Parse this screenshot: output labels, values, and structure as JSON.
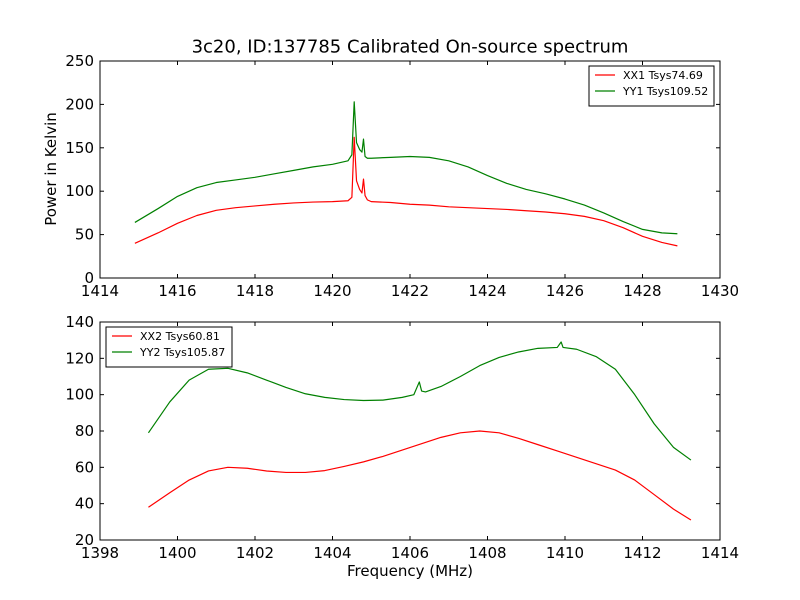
{
  "chart_data": [
    {
      "type": "line",
      "title": "3c20, ID:137785 Calibrated On-source spectrum",
      "xlabel": "",
      "ylabel": "Power in Kelvin",
      "xlim": [
        1414,
        1430
      ],
      "ylim": [
        0,
        250
      ],
      "xticks": [
        "1414",
        "1416",
        "1418",
        "1420",
        "1422",
        "1424",
        "1426",
        "1428",
        "1430"
      ],
      "yticks": [
        "0",
        "50",
        "100",
        "150",
        "200",
        "250"
      ],
      "grid": false,
      "legend_position": "top-right",
      "series": [
        {
          "name": "XX1 Tsys74.69",
          "color": "#ff0000",
          "x": [
            1414.9,
            1415.5,
            1416.0,
            1416.5,
            1417.0,
            1417.5,
            1418.0,
            1418.5,
            1419.0,
            1419.5,
            1420.0,
            1420.4,
            1420.5,
            1420.56,
            1420.62,
            1420.7,
            1420.76,
            1420.8,
            1420.84,
            1420.9,
            1421.0,
            1421.5,
            1422.0,
            1422.5,
            1423.0,
            1423.5,
            1424.0,
            1424.5,
            1425.0,
            1425.5,
            1426.0,
            1426.5,
            1427.0,
            1427.5,
            1428.0,
            1428.5,
            1428.9
          ],
          "y": [
            40,
            52,
            63,
            72,
            78,
            81,
            83,
            85,
            86.5,
            87.5,
            88,
            89,
            93,
            162,
            112,
            102,
            98,
            114,
            95,
            90,
            88,
            87,
            85,
            84,
            82,
            81,
            80,
            79,
            77.5,
            76,
            74,
            71,
            66,
            58,
            48,
            41,
            37
          ]
        },
        {
          "name": "YY1 Tsys109.52",
          "color": "#008000",
          "x": [
            1414.9,
            1415.5,
            1416.0,
            1416.5,
            1417.0,
            1417.5,
            1418.0,
            1418.5,
            1419.0,
            1419.5,
            1420.0,
            1420.4,
            1420.5,
            1420.56,
            1420.62,
            1420.7,
            1420.76,
            1420.8,
            1420.84,
            1420.9,
            1421.0,
            1421.5,
            1422.0,
            1422.5,
            1423.0,
            1423.5,
            1424.0,
            1424.5,
            1425.0,
            1425.5,
            1426.0,
            1426.5,
            1427.0,
            1427.5,
            1428.0,
            1428.5,
            1428.9
          ],
          "y": [
            64,
            80,
            94,
            104,
            110,
            113,
            116,
            120,
            124,
            128,
            131,
            135,
            142,
            203,
            156,
            148,
            145,
            160,
            140,
            138,
            138,
            139,
            140,
            139,
            135,
            128,
            118,
            109,
            102,
            97,
            91,
            84,
            75,
            65,
            56,
            52,
            51
          ]
        }
      ]
    },
    {
      "type": "line",
      "title": "",
      "xlabel": "Frequency (MHz)",
      "ylabel": "",
      "xlim": [
        1398,
        1414
      ],
      "ylim": [
        20,
        140
      ],
      "xticks": [
        "1398",
        "1400",
        "1402",
        "1404",
        "1406",
        "1408",
        "1410",
        "1412",
        "1414"
      ],
      "yticks": [
        "20",
        "40",
        "60",
        "80",
        "100",
        "120",
        "140"
      ],
      "grid": false,
      "legend_position": "top-left",
      "series": [
        {
          "name": "XX2 Tsys60.81",
          "color": "#ff0000",
          "x": [
            1399.25,
            1399.8,
            1400.3,
            1400.8,
            1401.3,
            1401.8,
            1402.3,
            1402.8,
            1403.3,
            1403.8,
            1404.3,
            1404.8,
            1405.3,
            1405.8,
            1406.3,
            1406.8,
            1407.3,
            1407.8,
            1408.3,
            1408.8,
            1409.3,
            1409.8,
            1410.3,
            1410.8,
            1411.3,
            1411.8,
            1412.3,
            1412.8,
            1413.25
          ],
          "y": [
            38,
            46,
            53,
            58,
            60,
            59.5,
            58,
            57.2,
            57.2,
            58.2,
            60.5,
            63,
            66,
            69.5,
            73,
            76.5,
            79,
            80,
            79,
            76,
            72.5,
            69,
            65.5,
            62,
            58.5,
            53,
            45,
            37,
            31
          ]
        },
        {
          "name": "YY2 Tsys105.87",
          "color": "#008000",
          "x": [
            1399.25,
            1399.8,
            1400.3,
            1400.8,
            1401.3,
            1401.8,
            1402.3,
            1402.8,
            1403.3,
            1403.8,
            1404.3,
            1404.8,
            1405.3,
            1405.8,
            1406.1,
            1406.24,
            1406.3,
            1406.4,
            1406.8,
            1407.3,
            1407.8,
            1408.3,
            1408.8,
            1409.3,
            1409.8,
            1409.9,
            1409.95,
            1410.3,
            1410.8,
            1411.3,
            1411.8,
            1412.3,
            1412.8,
            1413.25
          ],
          "y": [
            79,
            96,
            108,
            114,
            114.5,
            112,
            108,
            104,
            100.5,
            98.5,
            97.3,
            96.8,
            97,
            98.5,
            100,
            107,
            102,
            101.5,
            104.5,
            110,
            116,
            120.5,
            123.5,
            125.5,
            126,
            129,
            126,
            125,
            121,
            114,
            100,
            84,
            71,
            64
          ]
        }
      ]
    }
  ]
}
